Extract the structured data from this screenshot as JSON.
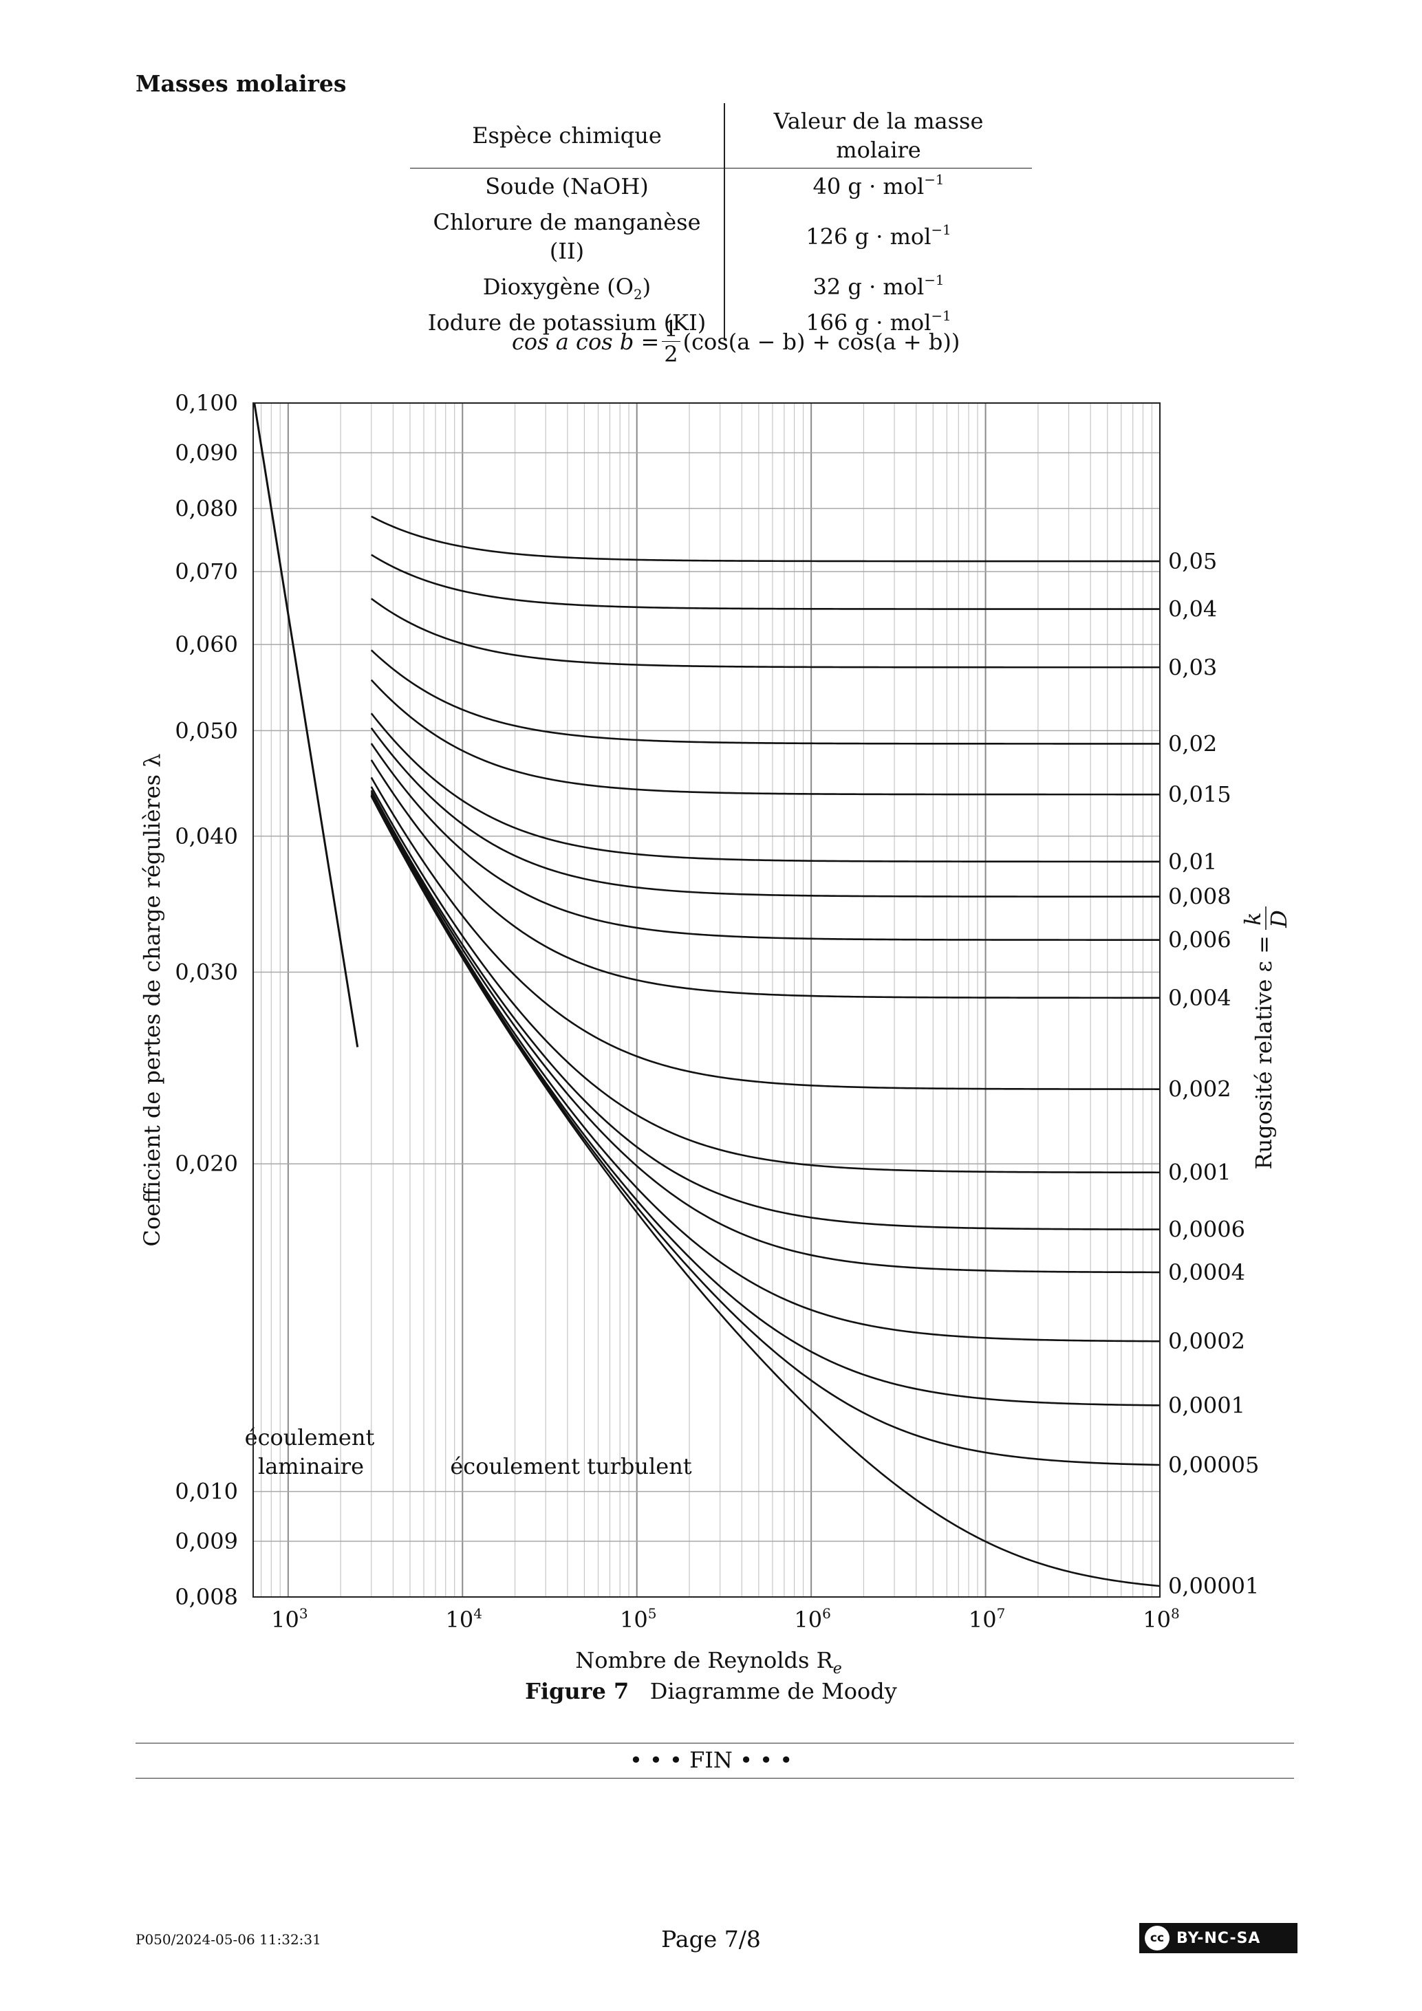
{
  "section_title": "Masses molaires",
  "table": {
    "headers": [
      "Espèce chimique",
      "Valeur de la masse molaire"
    ],
    "rows": [
      {
        "species": "Soude (NaOH)",
        "species_sub": "",
        "species_after": "",
        "value": "40 g · mol",
        "exp": "−1"
      },
      {
        "species": "Chlorure de manganèse (II)",
        "species_sub": "",
        "species_after": "",
        "value": "126 g · mol",
        "exp": "−1"
      },
      {
        "species": "Dioxygène (O",
        "species_sub": "2",
        "species_after": ")",
        "value": "32 g · mol",
        "exp": "−1"
      },
      {
        "species": "Iodure de potassium (KI)",
        "species_sub": "",
        "species_after": "",
        "value": "166 g · mol",
        "exp": "−1"
      }
    ]
  },
  "formula": {
    "lhs": "cos a cos b =",
    "num": "1",
    "den": "2",
    "rhs": "(cos(a − b) + cos(a + b))"
  },
  "chart_data": {
    "type": "line",
    "title": "",
    "xlabel": "Nombre de Reynolds R",
    "xlabel_sub": "e",
    "ylabel": "Coefficient de pertes de charge régulières λ",
    "right_label": "Rugosité relative ε = ",
    "right_label_frac": {
      "num": "k",
      "den": "D"
    },
    "x_scale": "log",
    "y_scale": "log",
    "xlim": [
      630,
      100000000
    ],
    "ylim": [
      0.008,
      0.1
    ],
    "x_ticks": [
      {
        "value": 1000,
        "base": "10",
        "exp": "3"
      },
      {
        "value": 10000,
        "base": "10",
        "exp": "4"
      },
      {
        "value": 100000,
        "base": "10",
        "exp": "5"
      },
      {
        "value": 1000000,
        "base": "10",
        "exp": "6"
      },
      {
        "value": 10000000,
        "base": "10",
        "exp": "7"
      },
      {
        "value": 100000000,
        "base": "10",
        "exp": "8"
      }
    ],
    "y_ticks": [
      {
        "value": 0.1,
        "label": "0,100"
      },
      {
        "value": 0.09,
        "label": "0,090"
      },
      {
        "value": 0.08,
        "label": "0,080"
      },
      {
        "value": 0.07,
        "label": "0,070"
      },
      {
        "value": 0.06,
        "label": "0,060"
      },
      {
        "value": 0.05,
        "label": "0,050"
      },
      {
        "value": 0.04,
        "label": "0,040"
      },
      {
        "value": 0.03,
        "label": "0,030"
      },
      {
        "value": 0.02,
        "label": "0,020"
      },
      {
        "value": 0.01,
        "label": "0,010"
      },
      {
        "value": 0.009,
        "label": "0,009"
      },
      {
        "value": 0.008,
        "label": "0,008"
      }
    ],
    "grid": true,
    "laminar_line": {
      "x": [
        640,
        2500
      ],
      "y": [
        0.1,
        0.0256
      ]
    },
    "turbulent_start_Re": 3000,
    "roughness_series": [
      {
        "value": 0.05,
        "label": "0,05"
      },
      {
        "value": 0.04,
        "label": "0,04"
      },
      {
        "value": 0.03,
        "label": "0,03"
      },
      {
        "value": 0.02,
        "label": "0,02"
      },
      {
        "value": 0.015,
        "label": "0,015"
      },
      {
        "value": 0.01,
        "label": "0,01"
      },
      {
        "value": 0.008,
        "label": "0,008"
      },
      {
        "value": 0.006,
        "label": "0,006"
      },
      {
        "value": 0.004,
        "label": "0,004"
      },
      {
        "value": 0.002,
        "label": "0,002"
      },
      {
        "value": 0.001,
        "label": "0,001"
      },
      {
        "value": 0.0006,
        "label": "0,0006"
      },
      {
        "value": 0.0004,
        "label": "0,0004"
      },
      {
        "value": 0.0002,
        "label": "0,0002"
      },
      {
        "value": 0.0001,
        "label": "0,0001"
      },
      {
        "value": 5e-05,
        "label": "0,00005"
      },
      {
        "value": 1e-05,
        "label": "0,00001"
      }
    ],
    "annotations": [
      {
        "line1": "écoulement",
        "line2": "laminaire"
      },
      {
        "line1": "écoulement turbulent",
        "line2": ""
      }
    ]
  },
  "caption": {
    "label": "Figure 7",
    "text": "Diagramme de Moody"
  },
  "fin": "• • • FIN • • •",
  "footer": {
    "id": "P050/2024-05-06 11:32:31",
    "page": "Page 7/8",
    "license_cc": "cc",
    "license": "BY-NC-SA"
  }
}
